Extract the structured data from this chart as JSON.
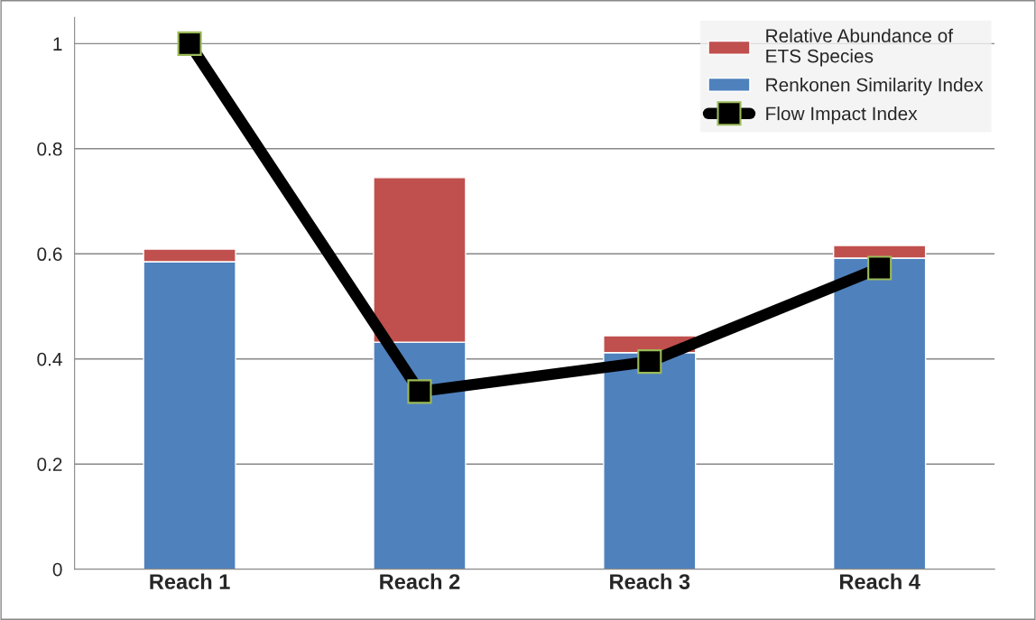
{
  "chart_data": {
    "type": "bar",
    "stacked": true,
    "categories": [
      "Reach 1",
      "Reach 2",
      "Reach 3",
      "Reach 4"
    ],
    "series": [
      {
        "name": "Renkonen Similarity Index",
        "color": "#4f81bd",
        "values": [
          0.585,
          0.432,
          0.412,
          0.592
        ]
      },
      {
        "name": "Relative Abundance of\nETS Species",
        "color": "#c0504d",
        "values": [
          0.024,
          0.313,
          0.032,
          0.024
        ]
      },
      {
        "name": "Flow Impact Index",
        "type": "line",
        "color": "#000000",
        "marker": "square",
        "values": [
          1.0,
          0.338,
          0.395,
          0.573
        ]
      }
    ],
    "ylim": [
      0,
      1.05
    ],
    "yticks": [
      0,
      0.2,
      0.4,
      0.6,
      0.8,
      1
    ],
    "grid": "y",
    "legend": "top right"
  }
}
